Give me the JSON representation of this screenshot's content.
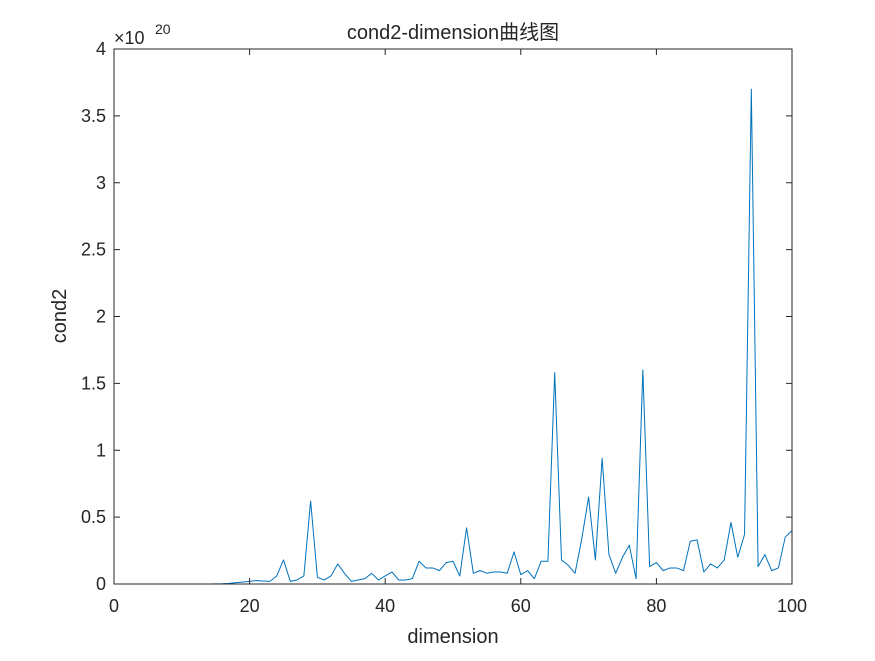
{
  "chart_data": {
    "type": "line",
    "title": "cond2-dimension曲线图",
    "xlabel": "dimension",
    "ylabel": "cond2",
    "xlim": [
      0,
      100
    ],
    "ylim": [
      0,
      4
    ],
    "y_exponent_base": "×10",
    "y_exponent_power": "20",
    "x_ticks": [
      0,
      20,
      40,
      60,
      80,
      100
    ],
    "y_ticks": [
      0,
      0.5,
      1,
      1.5,
      2,
      2.5,
      3,
      3.5,
      4
    ],
    "x_tick_labels": [
      "0",
      "20",
      "40",
      "60",
      "80",
      "100"
    ],
    "y_tick_labels": [
      "0",
      "0.5",
      "1",
      "1.5",
      "2",
      "2.5",
      "3",
      "3.5",
      "4"
    ],
    "grid": false,
    "colors": {
      "series1": "#0072BD",
      "series2": "#D95319",
      "axes": "#262626"
    },
    "x": [
      1,
      2,
      3,
      4,
      5,
      6,
      7,
      8,
      9,
      10,
      11,
      12,
      13,
      14,
      15,
      16,
      17,
      18,
      19,
      20,
      21,
      22,
      23,
      24,
      25,
      26,
      27,
      28,
      29,
      30,
      31,
      32,
      33,
      34,
      35,
      36,
      37,
      38,
      39,
      40,
      41,
      42,
      43,
      44,
      45,
      46,
      47,
      48,
      49,
      50,
      51,
      52,
      53,
      54,
      55,
      56,
      57,
      58,
      59,
      60,
      61,
      62,
      63,
      64,
      65,
      66,
      67,
      68,
      69,
      70,
      71,
      72,
      73,
      74,
      75,
      76,
      77,
      78,
      79,
      80,
      81,
      82,
      83,
      84,
      85,
      86,
      87,
      88,
      89,
      90,
      91,
      92,
      93,
      94,
      95,
      96,
      97,
      98,
      99,
      100
    ],
    "series": [
      {
        "values": [
          0,
          0,
          0,
          0,
          0,
          0,
          0,
          0,
          0,
          0,
          0,
          0,
          0,
          0,
          0.001,
          0.002,
          0.005,
          0.01,
          0.015,
          0.02,
          0.025,
          0.022,
          0.02,
          0.06,
          0.18,
          0.02,
          0.03,
          0.06,
          0.62,
          0.05,
          0.03,
          0.06,
          0.15,
          0.08,
          0.02,
          0.03,
          0.04,
          0.08,
          0.03,
          0.06,
          0.09,
          0.03,
          0.03,
          0.04,
          0.17,
          0.12,
          0.12,
          0.1,
          0.16,
          0.17,
          0.06,
          0.42,
          0.08,
          0.1,
          0.08,
          0.09,
          0.09,
          0.08,
          0.24,
          0.07,
          0.1,
          0.04,
          0.17,
          0.17,
          1.58,
          0.18,
          0.14,
          0.08,
          0.34,
          0.65,
          0.18,
          0.94,
          0.22,
          0.08,
          0.2,
          0.29,
          0.04,
          1.6,
          0.13,
          0.16,
          0.1,
          0.12,
          0.12,
          0.1,
          0.32,
          0.33,
          0.09,
          0.15,
          0.12,
          0.18,
          0.46,
          0.2,
          0.37,
          3.7,
          0.13,
          0.22,
          0.1,
          0.12,
          0.35,
          0.4
        ]
      },
      {
        "values": [
          0,
          0,
          0,
          0,
          0,
          0,
          0,
          0,
          0,
          0,
          0,
          0,
          0,
          0,
          0,
          0,
          0,
          0,
          0,
          0,
          0,
          0,
          0,
          0,
          0,
          0,
          0,
          0,
          0,
          0,
          0,
          0,
          0,
          0,
          0,
          0,
          0,
          0,
          0,
          0,
          0,
          0,
          0,
          0,
          0,
          0,
          0,
          0,
          0,
          0,
          0,
          0,
          0,
          0,
          0,
          0,
          0,
          0,
          0,
          0,
          0,
          0,
          0,
          0,
          0,
          0,
          0,
          0,
          0,
          0,
          0,
          0,
          0,
          0,
          0,
          0,
          0,
          0,
          0,
          0,
          0,
          0,
          0,
          0,
          0,
          0,
          0,
          0,
          0,
          0,
          0,
          0,
          0,
          0,
          0,
          0,
          0,
          0,
          0,
          0
        ]
      }
    ]
  }
}
